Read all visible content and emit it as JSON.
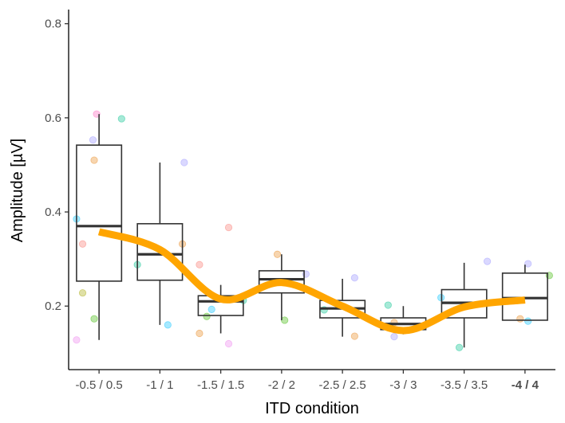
{
  "chart_data": {
    "type": "box",
    "xlabel": "ITD condition",
    "ylabel": "Amplitude [µV]",
    "categories": [
      "-0.5 / 0.5",
      "-1 / 1",
      "-1.5 / 1.5",
      "-2 / 2",
      "-2.5 / 2.5",
      "-3 / 3",
      "-3.5 / 3.5",
      "-4 / 4"
    ],
    "bold_categories": [
      "-4 / 4"
    ],
    "ylim": [
      0.065,
      0.83
    ],
    "yticks": [
      0.2,
      0.4,
      0.6,
      0.8
    ],
    "grid": false,
    "boxes": [
      {
        "category": "-0.5 / 0.5",
        "min": 0.128,
        "q1": 0.253,
        "median": 0.37,
        "q3": 0.542,
        "max": 0.608
      },
      {
        "category": "-1 / 1",
        "min": 0.16,
        "q1": 0.255,
        "median": 0.31,
        "q3": 0.375,
        "max": 0.505
      },
      {
        "category": "-1.5 / 1.5",
        "min": 0.142,
        "q1": 0.18,
        "median": 0.21,
        "q3": 0.222,
        "max": 0.245
      },
      {
        "category": "-2 / 2",
        "min": 0.17,
        "q1": 0.228,
        "median": 0.257,
        "q3": 0.275,
        "max": 0.31
      },
      {
        "category": "-2.5 / 2.5",
        "min": 0.135,
        "q1": 0.175,
        "median": 0.195,
        "q3": 0.212,
        "max": 0.258
      },
      {
        "category": "-3 / 3",
        "min": 0.14,
        "q1": 0.15,
        "median": 0.162,
        "q3": 0.175,
        "max": 0.2
      },
      {
        "category": "-3.5 / 3.5",
        "min": 0.112,
        "q1": 0.175,
        "median": 0.207,
        "q3": 0.235,
        "max": 0.292
      },
      {
        "category": "-4 / 4",
        "min": 0.17,
        "q1": 0.17,
        "median": 0.217,
        "q3": 0.27,
        "max": 0.288
      }
    ],
    "points": [
      {
        "category": "-0.5 / 0.5",
        "offset": -0.37,
        "y": 0.128,
        "color": "#ee82ee"
      },
      {
        "category": "-0.5 / 0.5",
        "offset": -0.37,
        "y": 0.385,
        "color": "#00bfff"
      },
      {
        "category": "-0.5 / 0.5",
        "offset": -0.27,
        "y": 0.332,
        "color": "#f8766d"
      },
      {
        "category": "-0.5 / 0.5",
        "offset": -0.27,
        "y": 0.228,
        "color": "#a3a500"
      },
      {
        "category": "-0.5 / 0.5",
        "offset": -0.08,
        "y": 0.173,
        "color": "#39b600"
      },
      {
        "category": "-0.5 / 0.5",
        "offset": -0.08,
        "y": 0.51,
        "color": "#e7861b"
      },
      {
        "category": "-0.5 / 0.5",
        "offset": -0.1,
        "y": 0.553,
        "color": "#9590ff"
      },
      {
        "category": "-0.5 / 0.5",
        "offset": -0.04,
        "y": 0.608,
        "color": "#ff62bc"
      },
      {
        "category": "-0.5 / 0.5",
        "offset": 0.37,
        "y": 0.598,
        "color": "#00c08b"
      },
      {
        "category": "-1 / 1",
        "offset": -0.37,
        "y": 0.288,
        "color": "#00c08b"
      },
      {
        "category": "-1 / 1",
        "offset": 0.13,
        "y": 0.16,
        "color": "#00bfff"
      },
      {
        "category": "-1 / 1",
        "offset": 0.37,
        "y": 0.332,
        "color": "#e7861b"
      },
      {
        "category": "-1 / 1",
        "offset": 0.4,
        "y": 0.505,
        "color": "#9590ff"
      },
      {
        "category": "-1.5 / 1.5",
        "offset": -0.35,
        "y": 0.142,
        "color": "#e7861b"
      },
      {
        "category": "-1.5 / 1.5",
        "offset": -0.35,
        "y": 0.288,
        "color": "#f8766d"
      },
      {
        "category": "-1.5 / 1.5",
        "offset": -0.23,
        "y": 0.178,
        "color": "#39b600"
      },
      {
        "category": "-1.5 / 1.5",
        "offset": -0.15,
        "y": 0.193,
        "color": "#00bfff"
      },
      {
        "category": "-1.5 / 1.5",
        "offset": 0.13,
        "y": 0.12,
        "color": "#ee82ee"
      },
      {
        "category": "-1.5 / 1.5",
        "offset": 0.13,
        "y": 0.367,
        "color": "#f8766d"
      },
      {
        "category": "-1.5 / 1.5",
        "offset": 0.37,
        "y": 0.212,
        "color": "#00c08b"
      },
      {
        "category": "-2 / 2",
        "offset": -0.07,
        "y": 0.31,
        "color": "#e7861b"
      },
      {
        "category": "-2 / 2",
        "offset": 0.05,
        "y": 0.17,
        "color": "#39b600"
      },
      {
        "category": "-2 / 2",
        "offset": 0.4,
        "y": 0.268,
        "color": "#9590ff"
      },
      {
        "category": "-2.5 / 2.5",
        "offset": -0.3,
        "y": 0.192,
        "color": "#00c08b"
      },
      {
        "category": "-2.5 / 2.5",
        "offset": 0.2,
        "y": 0.136,
        "color": "#e7861b"
      },
      {
        "category": "-2.5 / 2.5",
        "offset": 0.2,
        "y": 0.26,
        "color": "#9590ff"
      },
      {
        "category": "-3 / 3",
        "offset": -0.25,
        "y": 0.202,
        "color": "#00c08b"
      },
      {
        "category": "-3 / 3",
        "offset": -0.22,
        "y": 0.158,
        "color": "#00bfff"
      },
      {
        "category": "-3 / 3",
        "offset": -0.15,
        "y": 0.165,
        "color": "#e7861b"
      },
      {
        "category": "-3 / 3",
        "offset": -0.15,
        "y": 0.135,
        "color": "#9590ff"
      },
      {
        "category": "-3.5 / 3.5",
        "offset": -0.38,
        "y": 0.218,
        "color": "#00bfff"
      },
      {
        "category": "-3.5 / 3.5",
        "offset": -0.08,
        "y": 0.112,
        "color": "#00c08b"
      },
      {
        "category": "-3.5 / 3.5",
        "offset": 0.38,
        "y": 0.295,
        "color": "#9590ff"
      },
      {
        "category": "-4 / 4",
        "offset": -0.08,
        "y": 0.173,
        "color": "#e7861b"
      },
      {
        "category": "-4 / 4",
        "offset": 0.05,
        "y": 0.29,
        "color": "#9590ff"
      },
      {
        "category": "-4 / 4",
        "offset": 0.05,
        "y": 0.168,
        "color": "#00bfff"
      },
      {
        "category": "-4 / 4",
        "offset": 0.4,
        "y": 0.265,
        "color": "#39b600"
      }
    ],
    "trend": {
      "color": "#ffa500",
      "values": [
        0.358,
        0.32,
        0.215,
        0.25,
        0.2,
        0.148,
        0.198,
        0.213
      ]
    }
  }
}
